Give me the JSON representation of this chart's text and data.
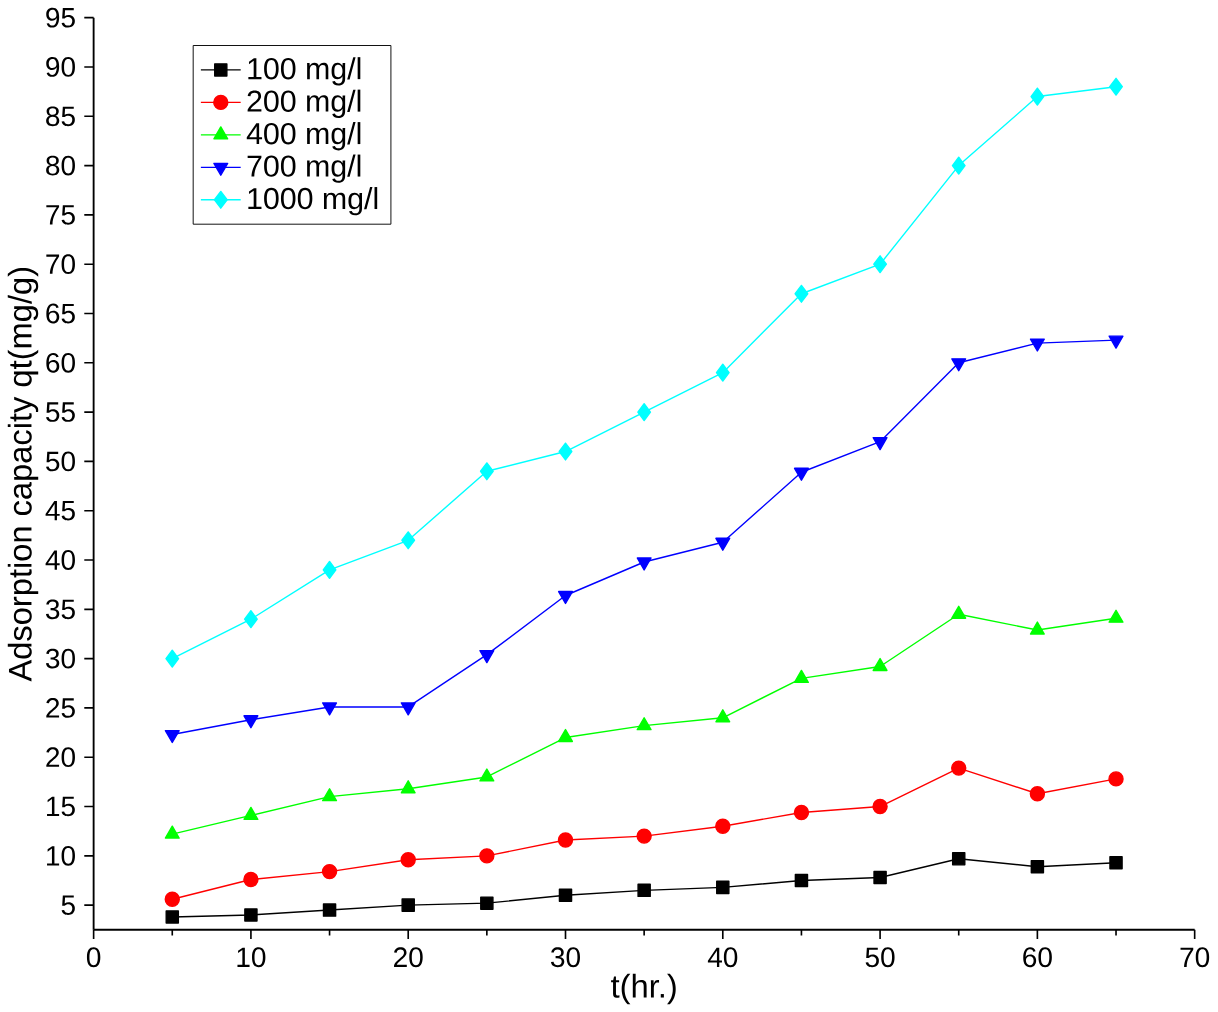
{
  "chart_data": {
    "type": "line",
    "xlabel": "t(hr.)",
    "ylabel": "Adsorption capacity qt(mg/g)",
    "x": [
      5,
      10,
      15,
      20,
      25,
      30,
      35,
      40,
      45,
      50,
      55,
      60,
      65
    ],
    "series": [
      {
        "name": "100 mg/l",
        "color": "#000000",
        "marker": "square",
        "values": [
          3.8,
          4.0,
          4.5,
          5.0,
          5.2,
          6.0,
          6.5,
          6.8,
          7.5,
          7.8,
          9.7,
          8.9,
          9.3
        ]
      },
      {
        "name": "200 mg/l",
        "color": "#ff0000",
        "marker": "circle",
        "values": [
          5.6,
          7.6,
          8.4,
          9.6,
          10.0,
          11.6,
          12.0,
          13.0,
          14.4,
          15.0,
          18.9,
          16.3,
          17.8
        ]
      },
      {
        "name": "400 mg/l",
        "color": "#00ff00",
        "marker": "triangle",
        "values": [
          12.2,
          14.1,
          16.0,
          16.8,
          18.0,
          22.0,
          23.2,
          24.0,
          28.0,
          29.2,
          34.5,
          32.9,
          34.1
        ]
      },
      {
        "name": "700 mg/l",
        "color": "#0000ff",
        "marker": "triangle down",
        "values": [
          22.3,
          23.8,
          25.1,
          25.1,
          30.4,
          36.4,
          39.8,
          41.8,
          48.9,
          52.0,
          60.0,
          62.0,
          62.3
        ]
      },
      {
        "name": "1000 mg/l",
        "color": "#00ffff",
        "marker": "diamond",
        "values": [
          30,
          34,
          39,
          42,
          49,
          51,
          55,
          59,
          67,
          70,
          80,
          87,
          88
        ]
      }
    ],
    "xlim": [
      0,
      70
    ],
    "xticks": [
      0,
      10,
      20,
      30,
      40,
      50,
      60,
      70
    ],
    "ylim": [
      2.5,
      95
    ],
    "yticks": [
      5,
      10,
      15,
      20,
      25,
      30,
      35,
      40,
      45,
      50,
      55,
      60,
      65,
      70,
      75,
      80,
      85,
      90,
      95
    ],
    "grid": false,
    "legend": "top left",
    "line_style": "solid"
  }
}
